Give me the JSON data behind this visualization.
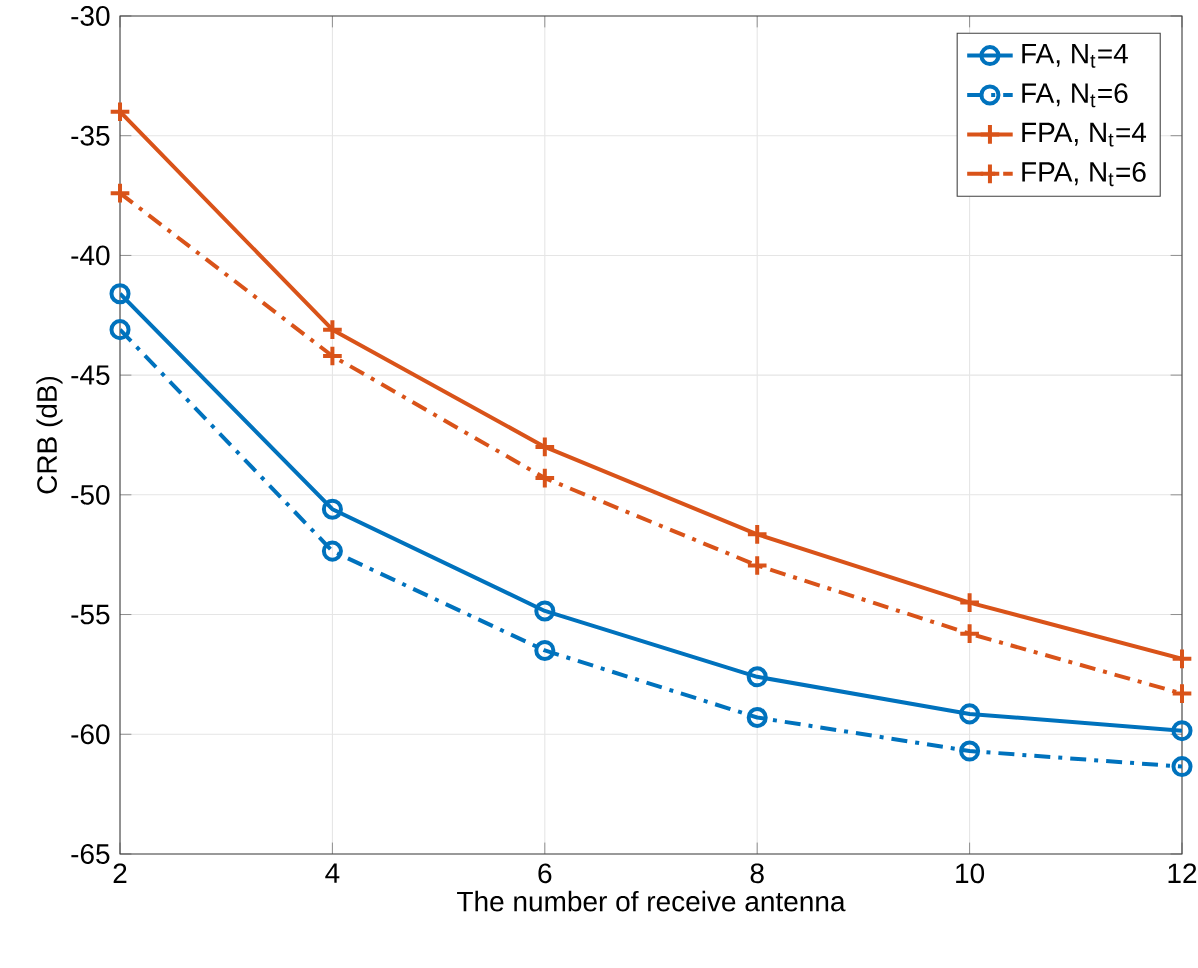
{
  "chart_data": {
    "type": "line",
    "xlabel": "The number of receive antenna",
    "ylabel": "CRB (dB)",
    "x": [
      2,
      4,
      6,
      8,
      10,
      12
    ],
    "series": [
      {
        "name": "FA, N$_{t}$=4",
        "color": "#0072bd",
        "marker": "circle",
        "line_style": "solid",
        "values": [
          -41.6,
          -50.6,
          -54.85,
          -57.6,
          -59.15,
          -59.85
        ]
      },
      {
        "name": "FA, N$_{t}$=6",
        "color": "#0072bd",
        "marker": "circle",
        "line_style": "dashdot",
        "values": [
          -43.1,
          -52.35,
          -56.5,
          -59.3,
          -60.7,
          -61.35
        ]
      },
      {
        "name": "FPA, N$_{t}$=4",
        "color": "#d95319",
        "marker": "cross",
        "line_style": "solid",
        "values": [
          -34.0,
          -43.1,
          -48.0,
          -51.65,
          -54.5,
          -56.85
        ]
      },
      {
        "name": "FPA, N$_{t}$=6",
        "color": "#d95319",
        "marker": "cross",
        "line_style": "dashdot",
        "values": [
          -37.4,
          -44.2,
          -49.3,
          -52.95,
          -55.8,
          -58.3
        ]
      }
    ],
    "xlim": [
      2,
      12
    ],
    "xticks": [
      2,
      4,
      6,
      8,
      10,
      12
    ],
    "ylim": [
      -65,
      -30
    ],
    "yticks": [
      -65,
      -60,
      -55,
      -50,
      -45,
      -40,
      -35,
      -30
    ],
    "grid": true,
    "legend": "top right"
  }
}
